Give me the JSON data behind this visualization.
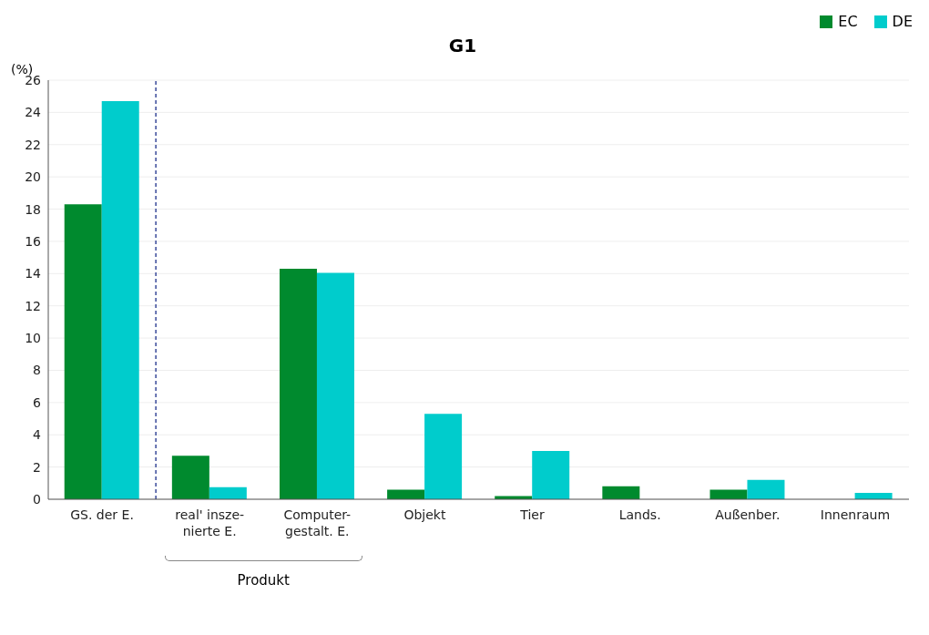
{
  "chart_data": {
    "type": "bar",
    "title": "G1",
    "ylabel": "(%)",
    "categories": [
      "GS. der E.",
      "real' insze-\nnierte E.",
      "Computer-\ngestalt. E.",
      "Objekt",
      "Tier",
      "Lands.",
      "Außenber.",
      "Innenraum"
    ],
    "series": [
      {
        "name": "EC",
        "color": "#008a2e",
        "values": [
          18.3,
          2.7,
          14.3,
          0.6,
          0.2,
          0.8,
          0.6,
          null
        ]
      },
      {
        "name": "DE",
        "color": "#00cccc",
        "values": [
          24.7,
          0.75,
          14.05,
          5.3,
          3.0,
          null,
          1.2,
          0.4
        ]
      }
    ],
    "ylim": [
      0,
      26
    ],
    "yticks": [
      0,
      2,
      4,
      6,
      8,
      10,
      12,
      14,
      16,
      18,
      20,
      22,
      24,
      26
    ],
    "grid": "y",
    "legend": "top right",
    "ref_lines": [
      {
        "axis": "x",
        "value": "GS. der E.",
        "color": "#3a4a9a",
        "line_style": "dashed"
      }
    ],
    "annotations": [
      "Produkt"
    ]
  }
}
